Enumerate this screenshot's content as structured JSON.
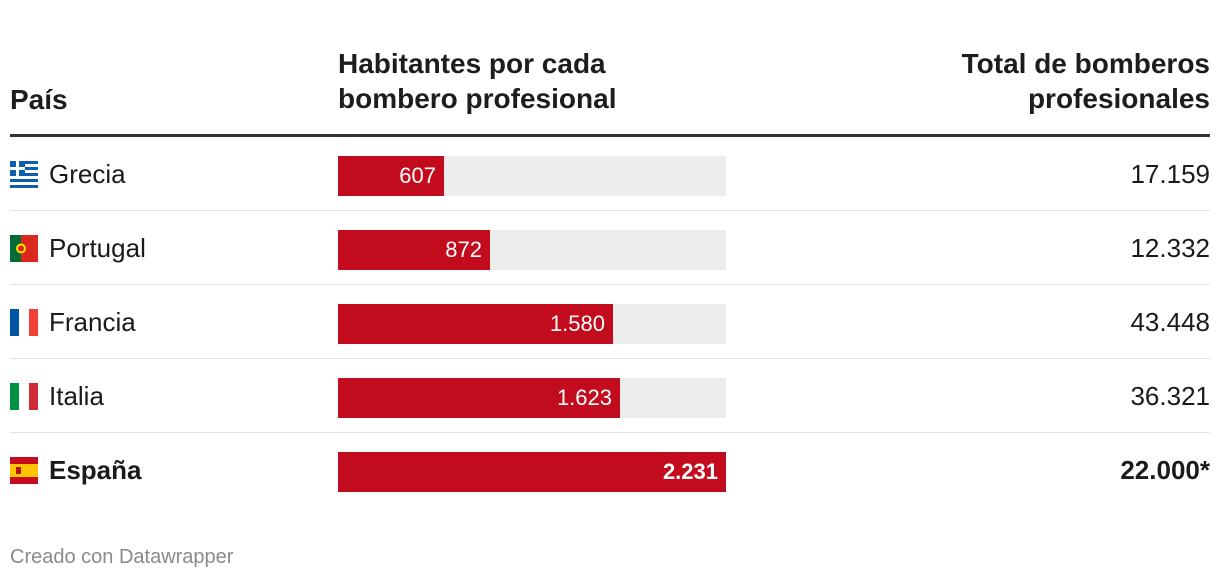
{
  "header": {
    "country": "País",
    "ratio_line1": "Habitantes por cada",
    "ratio_line2": "bombero profesional",
    "total_line1": "Total de bomberos",
    "total_line2": "profesionales"
  },
  "chart_data": {
    "type": "bar",
    "title": "Habitantes por cada bombero profesional",
    "max": 2231,
    "categories": [
      "Grecia",
      "Portugal",
      "Francia",
      "Italia",
      "España"
    ],
    "values": [
      607,
      872,
      1580,
      1623,
      2231
    ],
    "value_labels": [
      "607",
      "872",
      "1.580",
      "1.623",
      "2.231"
    ],
    "totals_column_title": "Total de bomberos profesionales",
    "totals": [
      "17.159",
      "12.332",
      "43.448",
      "36.321",
      "22.000*"
    ],
    "flags": [
      "greece-flag-icon",
      "portugal-flag-icon",
      "france-flag-icon",
      "italy-flag-icon",
      "spain-flag-icon"
    ],
    "highlight": "España",
    "bar_color": "#c20c1e",
    "track_color": "#ececec"
  },
  "footer": {
    "credit": "Creado con Datawrapper"
  }
}
